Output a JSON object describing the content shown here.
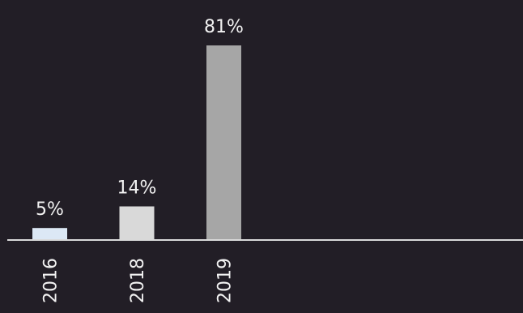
{
  "chart_data": {
    "type": "bar",
    "categories": [
      "2016",
      "2018",
      "2019"
    ],
    "values": [
      5,
      14,
      81
    ],
    "data_labels": [
      "5%",
      "14%",
      "81%"
    ],
    "unit": "%",
    "ylim": [
      0,
      81
    ],
    "grid": false,
    "legend": "none",
    "title": "",
    "xlabel": "",
    "ylabel": "",
    "colors": {
      "background": "#221e26",
      "bars": [
        "#dce8f5",
        "#d9d9d9",
        "#a6a6a6"
      ],
      "axis": "#d9d9d9",
      "text": "#f2f2f2"
    }
  }
}
